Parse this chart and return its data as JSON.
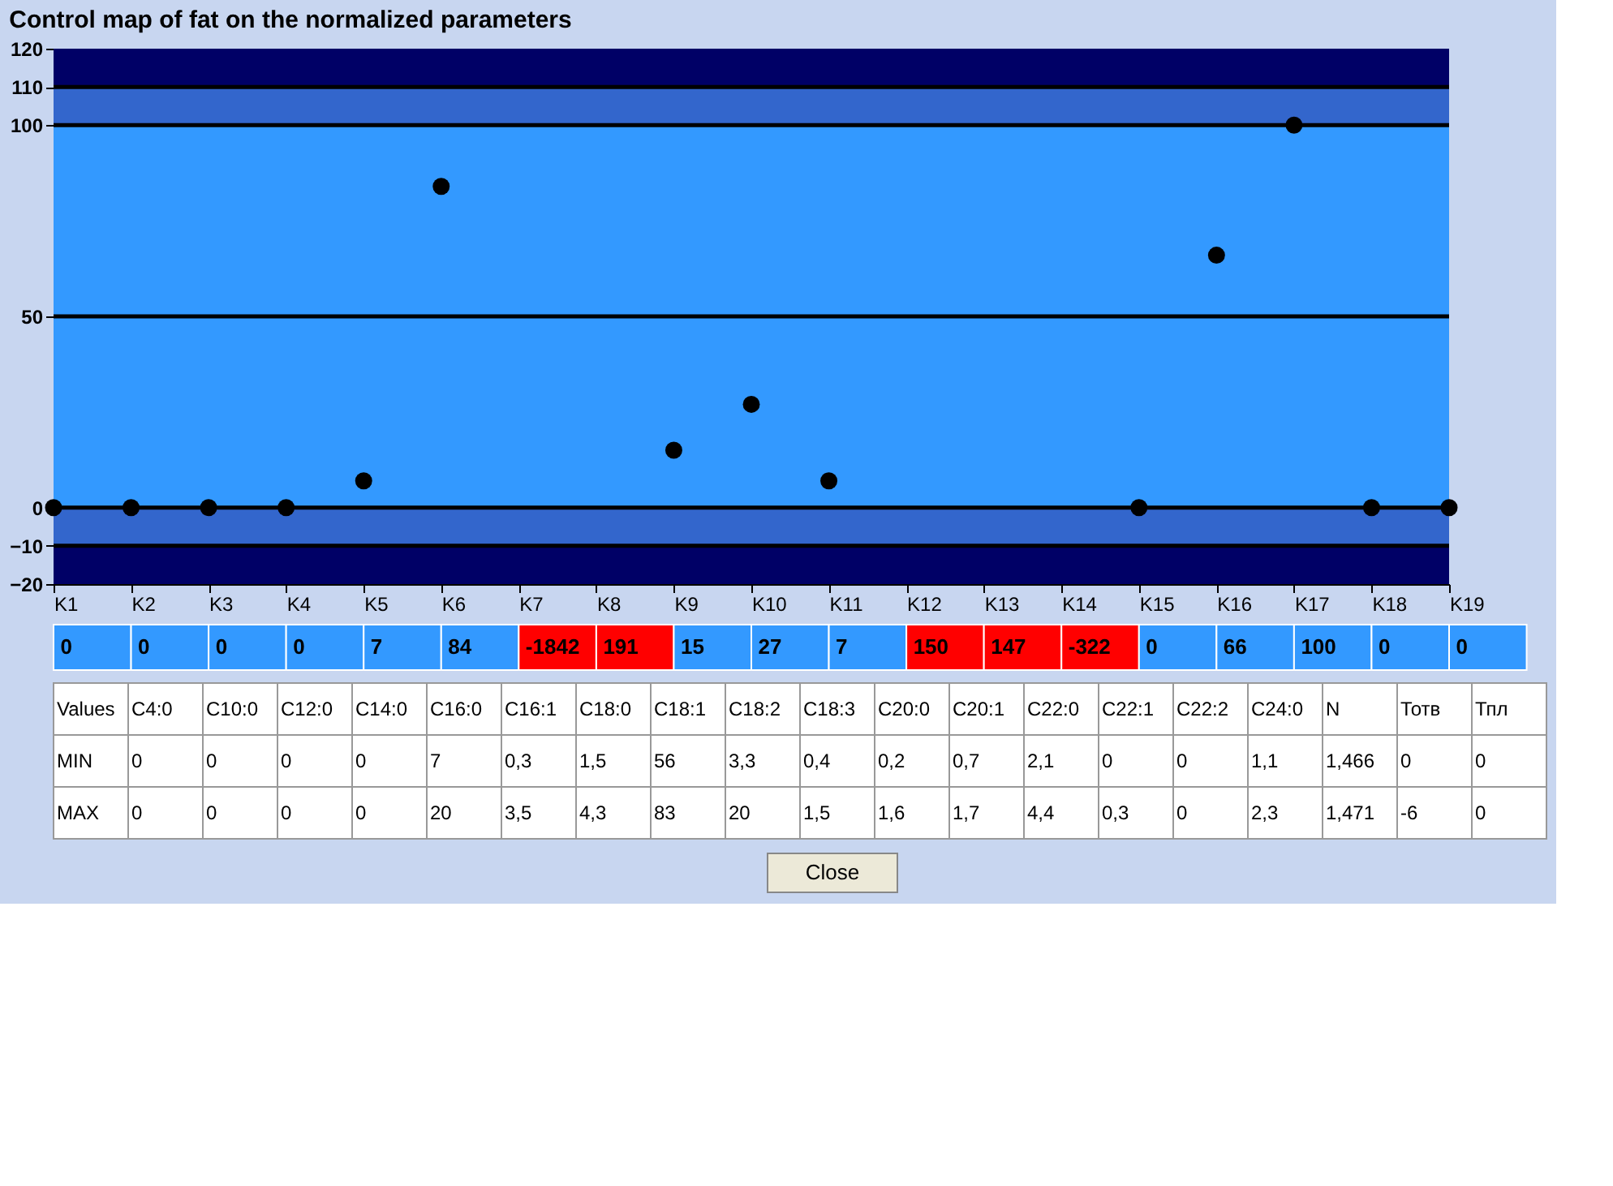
{
  "chart_data": {
    "type": "scatter",
    "title": "Control map of fat on the normalized parameters",
    "categories": [
      "K1",
      "K2",
      "K3",
      "K4",
      "K5",
      "K6",
      "K7",
      "K8",
      "K9",
      "K10",
      "K11",
      "K12",
      "K13",
      "K14",
      "K15",
      "K16",
      "K17",
      "K18",
      "K19"
    ],
    "series": [
      {
        "color": "#000000",
        "values": [
          0,
          0,
          0,
          0,
          7,
          84,
          null,
          null,
          15,
          27,
          7,
          null,
          null,
          null,
          0,
          66,
          100,
          0,
          0
        ],
        "value_labels": [
          "0",
          "0",
          "0",
          "0",
          "7",
          "84",
          "-1842",
          "191",
          "15",
          "27",
          "7",
          "150",
          "147",
          "-322",
          "0",
          "66",
          "100",
          "0",
          "0"
        ]
      }
    ],
    "ylim": [
      -20,
      120
    ],
    "yticks": [
      -20,
      -10,
      0,
      50,
      100,
      110,
      120
    ],
    "grid": false,
    "marker": "circle",
    "bands": [
      {
        "axis": "y",
        "from": -20,
        "to": -10,
        "color": "#000066"
      },
      {
        "axis": "y",
        "from": -10,
        "to": 0,
        "color": "#3366cc"
      },
      {
        "axis": "y",
        "from": 0,
        "to": 100,
        "color": "#3399ff"
      },
      {
        "axis": "y",
        "from": 100,
        "to": 110,
        "color": "#3366cc"
      },
      {
        "axis": "y",
        "from": 110,
        "to": 120,
        "color": "#000066"
      }
    ],
    "ref_lines": [
      {
        "axis": "y",
        "value": -10,
        "color": "#000000"
      },
      {
        "axis": "y",
        "value": 0,
        "color": "#000000"
      },
      {
        "axis": "y",
        "value": 50,
        "color": "#000000"
      },
      {
        "axis": "y",
        "value": 100,
        "color": "#000000"
      },
      {
        "axis": "y",
        "value": 110,
        "color": "#000000"
      }
    ],
    "annotations": [
      "Values",
      "C4:0",
      "C10:0",
      "C12:0",
      "C14:0",
      "C16:0",
      "C16:1",
      "C18:0",
      "C18:1",
      "C18:2",
      "C18:3",
      "C20:0",
      "C20:1",
      "C22:0",
      "C22:1",
      "C22:2",
      "C24:0",
      "N",
      "Тотв",
      "Тпл",
      "MIN",
      "0",
      "0",
      "0",
      "0",
      "7",
      "0,3",
      "1,5",
      "56",
      "3,3",
      "0,4",
      "0,2",
      "0,7",
      "2,1",
      "0",
      "0",
      "1,1",
      "1,466",
      "0",
      "0",
      "MAX",
      "0",
      "0",
      "0",
      "0",
      "20",
      "3,5",
      "4,3",
      "83",
      "20",
      "1,5",
      "1,6",
      "1,7",
      "4,4",
      "0,3",
      "0",
      "2,3",
      "1,471",
      "-6",
      "0",
      "Close"
    ]
  }
}
